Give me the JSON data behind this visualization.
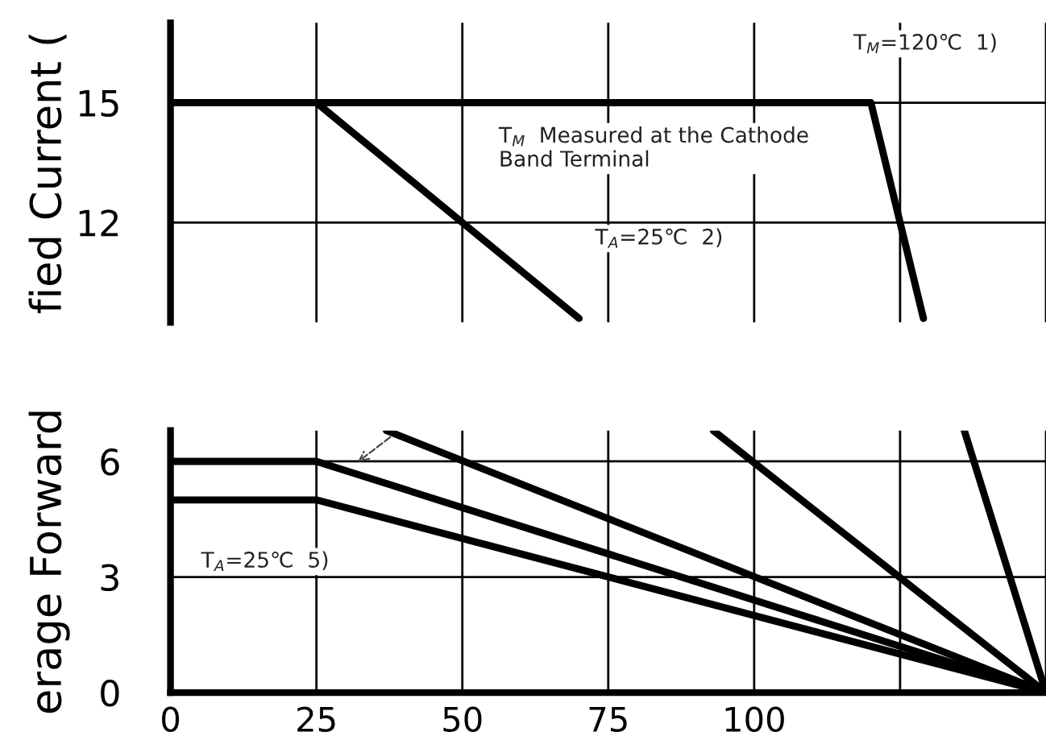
{
  "chart_data": [
    {
      "type": "line",
      "ylabel": "fied Current (",
      "xlim": [
        0,
        150
      ],
      "ylim": [
        9.5,
        17
      ],
      "xticks": [
        0,
        25,
        50,
        75,
        100,
        125,
        150
      ],
      "yticks": [
        12,
        15
      ],
      "tick_labels": "y",
      "grid": true,
      "line_style": "solid",
      "marker": "none",
      "series": [
        {
          "color": "#000000",
          "x": [
            0,
            120,
            125,
            129
          ],
          "values": [
            15,
            15,
            12,
            9.6
          ]
        },
        {
          "color": "#000000",
          "x": [
            0,
            25,
            50,
            70
          ],
          "values": [
            15,
            15,
            12,
            9.6
          ]
        }
      ],
      "annotations": [
        "T$_{M}$=120℃  1)",
        "T$_{M}$  Measured at the Cathode\nBand Terminal",
        "T$_{A}$=25℃  2)"
      ]
    },
    {
      "type": "line",
      "ylabel": "erage Forward",
      "xlim": [
        0,
        150
      ],
      "ylim": [
        0,
        6.8
      ],
      "xticks": [
        0,
        25,
        50,
        75,
        100,
        {
          "value": 125,
          "label": null
        },
        {
          "value": 150,
          "label": null
        }
      ],
      "yticks": [
        0,
        3,
        6
      ],
      "grid": true,
      "line_style": "solid",
      "marker": "none",
      "series": [
        {
          "color": "#000000",
          "x": [
            0,
            25,
            150
          ],
          "values": [
            6,
            6,
            0
          ]
        },
        {
          "color": "#000000",
          "x": [
            0,
            25,
            150
          ],
          "values": [
            5,
            5,
            0
          ]
        },
        {
          "color": "#000000",
          "x": [
            37,
            150
          ],
          "values": [
            6.8,
            0
          ]
        },
        {
          "color": "#000000",
          "x": [
            93,
            150
          ],
          "values": [
            6.8,
            0
          ]
        },
        {
          "color": "#000000",
          "x": [
            136,
            150
          ],
          "values": [
            6.8,
            0
          ]
        }
      ],
      "annotations": [
        "T$_{A}$=25℃  5)"
      ]
    }
  ]
}
